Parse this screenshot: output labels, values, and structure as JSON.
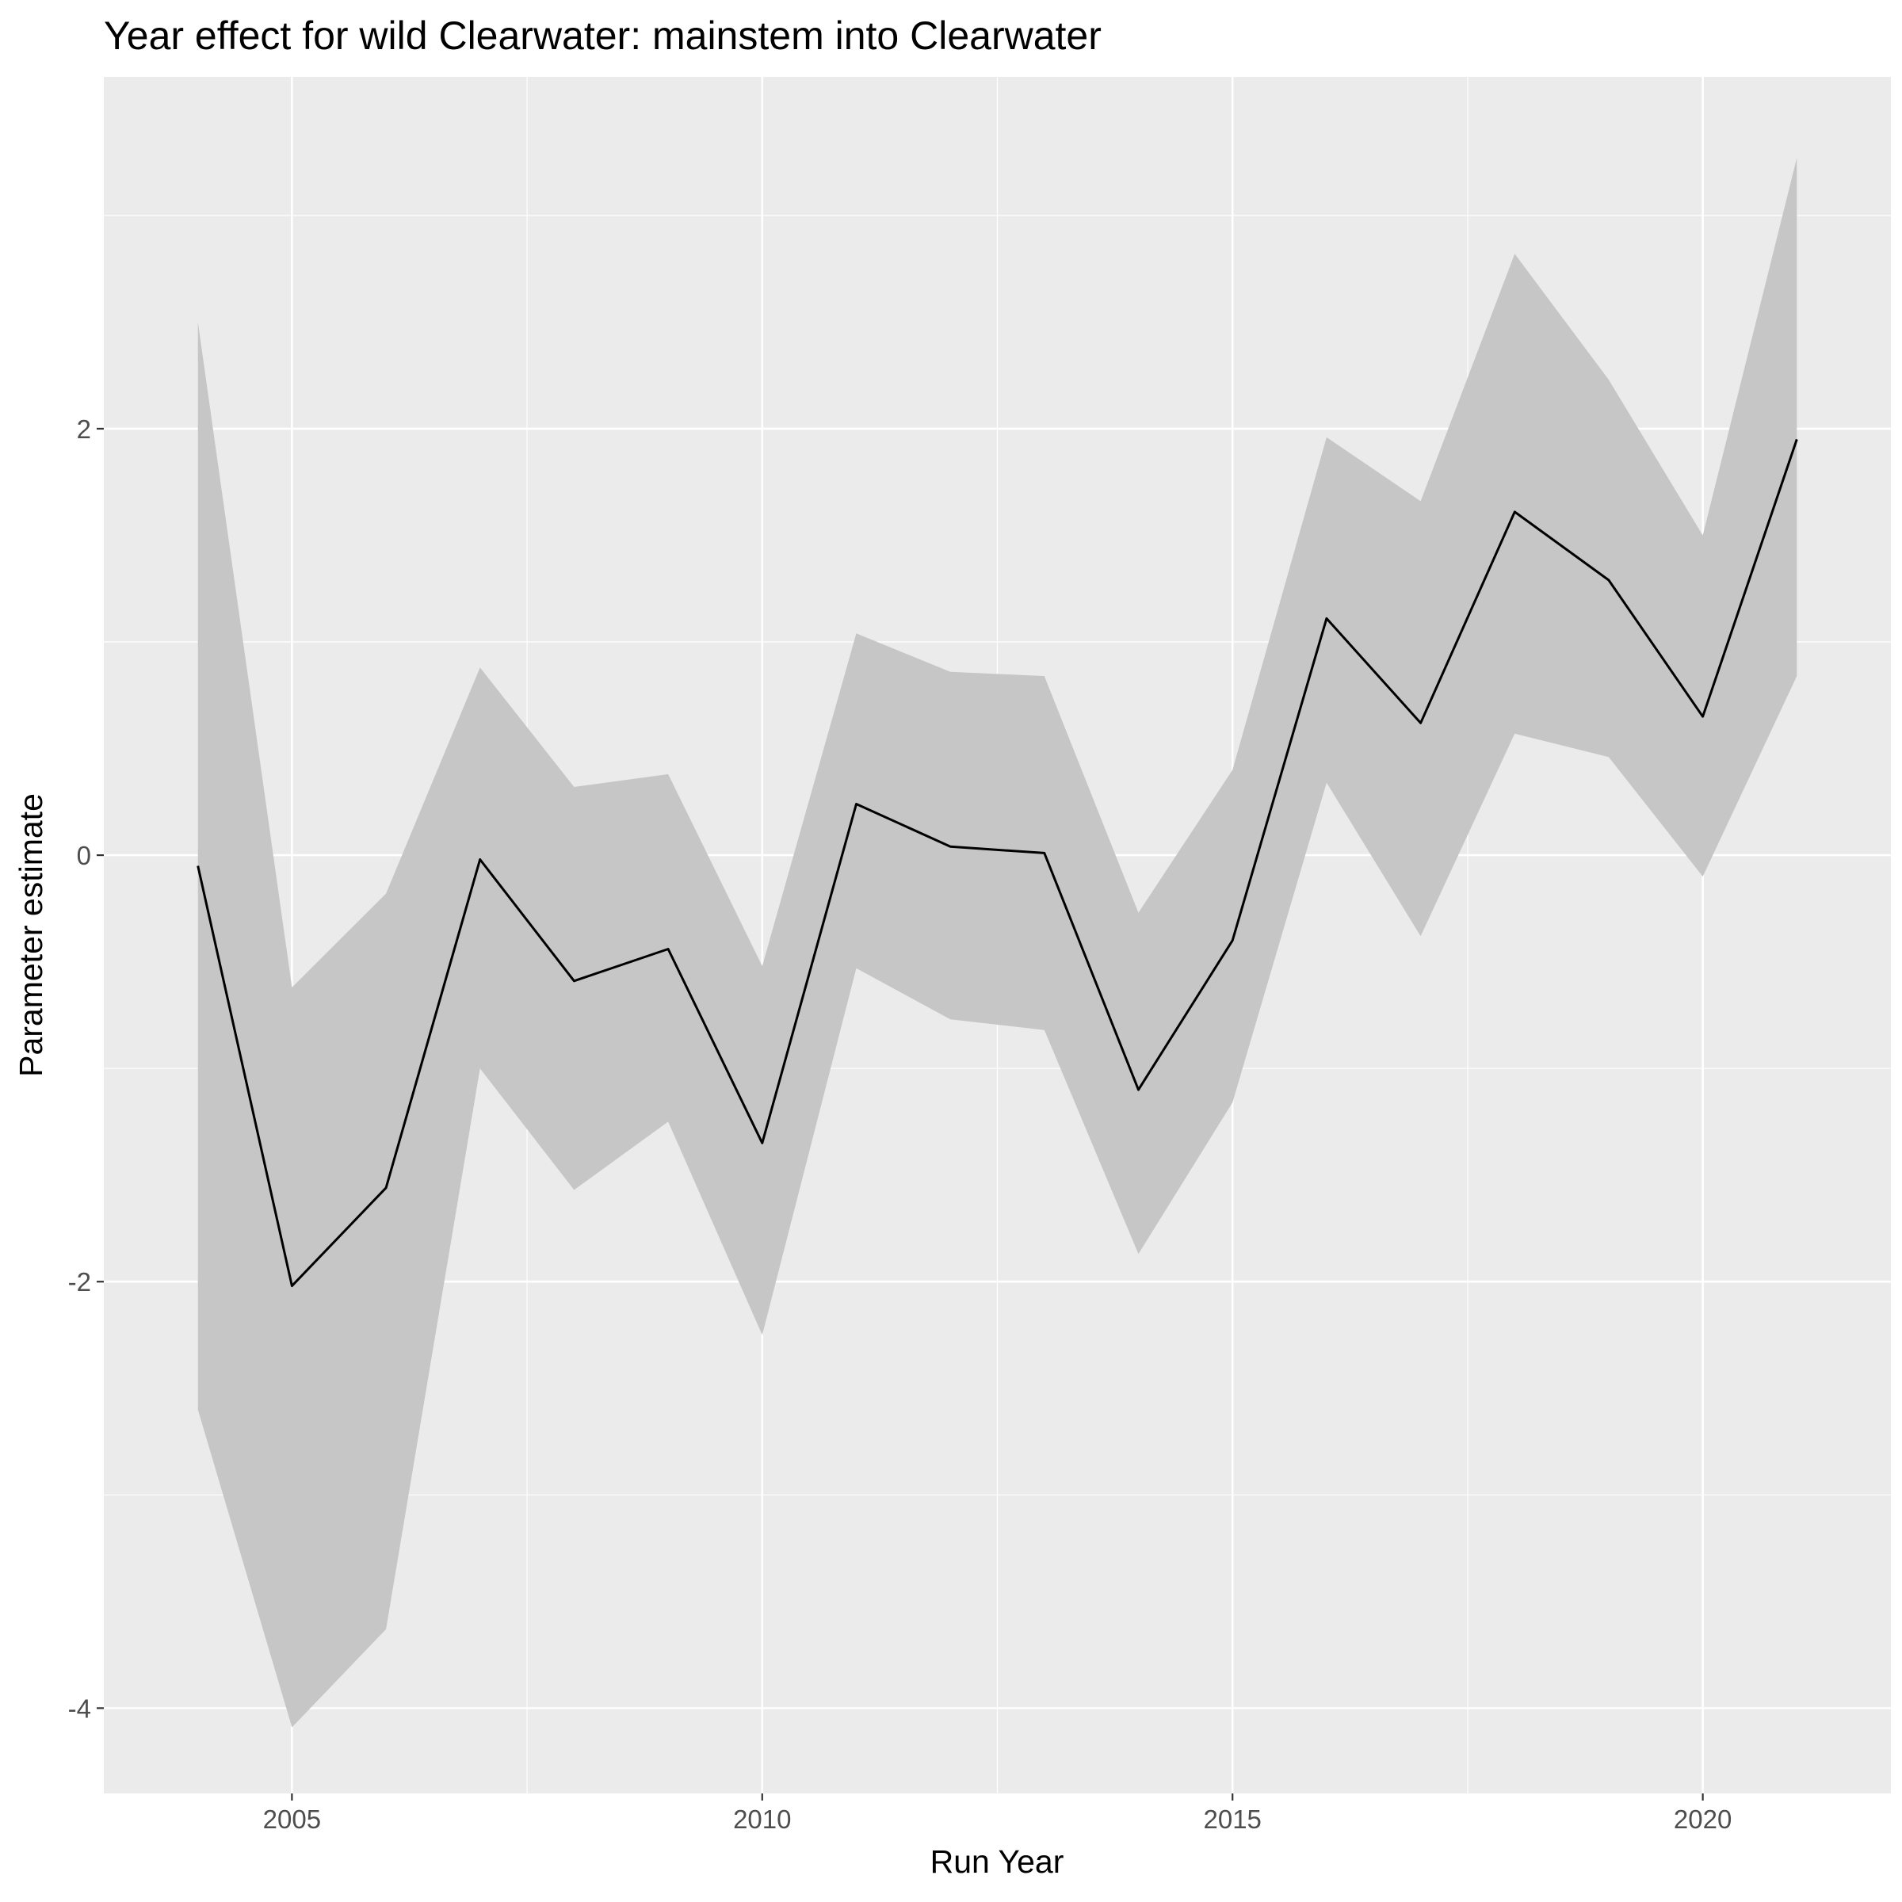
{
  "chart_data": {
    "type": "line",
    "title": "Year effect for wild Clearwater: mainstem into Clearwater",
    "xlabel": "Run Year",
    "ylabel": "Parameter estimate",
    "xlim": [
      2003.0,
      2022.0
    ],
    "ylim": [
      -4.4,
      3.65
    ],
    "x_ticks": [
      2005,
      2010,
      2015,
      2020
    ],
    "x_tick_labels": [
      "2005",
      "2010",
      "2015",
      "2020"
    ],
    "y_ticks": [
      2,
      0,
      -2,
      -4
    ],
    "y_tick_labels": [
      "2",
      "0",
      "-2",
      "-4"
    ],
    "x_minor_ticks": [
      2007.5,
      2012.5,
      2017.5
    ],
    "y_minor_ticks": [
      3,
      1,
      -1,
      -3
    ],
    "grid": true,
    "background": "#ebebeb",
    "gridline_color": "#ffffff",
    "ribbon_color": "#c6c6c6",
    "line_color": "#000000",
    "series": [
      {
        "x": [
          2004,
          2005,
          2006,
          2007,
          2008,
          2009,
          2010,
          2011,
          2012,
          2013,
          2014,
          2015,
          2016,
          2017,
          2018,
          2019,
          2020,
          2021
        ],
        "values": [
          -0.05,
          -2.02,
          -1.56,
          -0.02,
          -0.59,
          -0.44,
          -1.35,
          0.24,
          0.04,
          0.01,
          -1.1,
          -0.4,
          1.11,
          0.62,
          1.61,
          1.29,
          0.65,
          1.95
        ],
        "lower": [
          -2.6,
          -4.09,
          -3.63,
          -1.0,
          -1.57,
          -1.25,
          -2.25,
          -0.53,
          -0.77,
          -0.82,
          -1.87,
          -1.16,
          0.34,
          -0.38,
          0.57,
          0.46,
          -0.1,
          0.84
        ],
        "upper": [
          2.5,
          -0.62,
          -0.18,
          0.88,
          0.32,
          0.38,
          -0.52,
          1.04,
          0.86,
          0.84,
          -0.27,
          0.4,
          1.96,
          1.66,
          2.82,
          2.23,
          1.5,
          3.27
        ]
      }
    ]
  }
}
